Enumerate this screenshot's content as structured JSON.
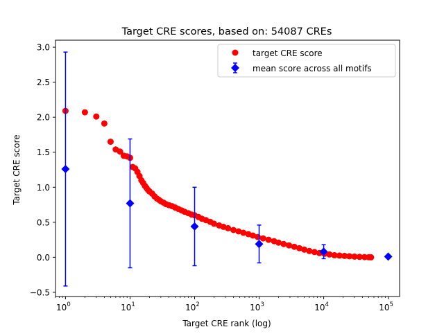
{
  "chart_data": {
    "type": "scatter",
    "title": "Target CRE scores, based on: 54087 CREs",
    "xlabel": "Target CRE rank (log)",
    "ylabel": "Target CRE score",
    "xscale": "log",
    "xlim": [
      0.7,
      150000
    ],
    "ylim": [
      -0.56,
      3.1
    ],
    "xticks": [
      {
        "value": 1,
        "base": "10",
        "exp": "0"
      },
      {
        "value": 10,
        "base": "10",
        "exp": "1"
      },
      {
        "value": 100,
        "base": "10",
        "exp": "2"
      },
      {
        "value": 1000,
        "base": "10",
        "exp": "3"
      },
      {
        "value": 10000,
        "base": "10",
        "exp": "4"
      },
      {
        "value": 100000,
        "base": "10",
        "exp": "5"
      }
    ],
    "yticks": [
      -0.5,
      0.0,
      0.5,
      1.0,
      1.5,
      2.0,
      2.5,
      3.0
    ],
    "ytick_labels": [
      "−0.5",
      "0.0",
      "0.5",
      "1.0",
      "1.5",
      "2.0",
      "2.5",
      "3.0"
    ],
    "grid": false,
    "legend_position": "top-right",
    "series": [
      {
        "name": "target CRE score",
        "color": "#ff0000",
        "marker": "circle",
        "x": [
          1,
          2,
          3,
          4,
          5,
          6,
          7,
          8,
          9,
          10,
          11,
          12,
          13,
          14,
          15,
          16,
          17,
          18,
          19,
          20,
          22,
          24,
          26,
          28,
          30,
          33,
          36,
          40,
          45,
          50,
          56,
          63,
          70,
          80,
          90,
          100,
          115,
          130,
          150,
          175,
          200,
          240,
          280,
          330,
          400,
          480,
          570,
          680,
          800,
          950,
          1150,
          1400,
          1700,
          2000,
          2400,
          2900,
          3500,
          4200,
          5000,
          6000,
          7200,
          8600,
          10300,
          12300,
          14700,
          17600,
          21000,
          25000,
          30000,
          36000,
          43000,
          50000,
          54087
        ],
        "y": [
          2.09,
          2.07,
          2.01,
          1.91,
          1.65,
          1.54,
          1.51,
          1.45,
          1.44,
          1.42,
          1.29,
          1.27,
          1.22,
          1.16,
          1.1,
          1.06,
          1.02,
          0.99,
          0.96,
          0.94,
          0.91,
          0.87,
          0.84,
          0.82,
          0.8,
          0.78,
          0.76,
          0.745,
          0.73,
          0.71,
          0.69,
          0.67,
          0.65,
          0.63,
          0.61,
          0.6,
          0.575,
          0.55,
          0.53,
          0.505,
          0.48,
          0.455,
          0.435,
          0.415,
          0.39,
          0.37,
          0.35,
          0.33,
          0.31,
          0.29,
          0.27,
          0.25,
          0.23,
          0.21,
          0.19,
          0.17,
          0.15,
          0.13,
          0.11,
          0.09,
          0.075,
          0.06,
          0.05,
          0.04,
          0.03,
          0.025,
          0.02,
          0.015,
          0.01,
          0.006,
          0.003,
          0.001,
          0.0
        ]
      },
      {
        "name": "mean score across all motifs",
        "color": "#0000ff",
        "marker": "diamond",
        "x": [
          1,
          10,
          100,
          1000,
          10000,
          100000
        ],
        "y": [
          1.26,
          0.77,
          0.44,
          0.19,
          0.08,
          0.01
        ],
        "yerr": [
          1.67,
          0.92,
          0.56,
          0.27,
          0.1,
          0.0
        ]
      }
    ]
  }
}
